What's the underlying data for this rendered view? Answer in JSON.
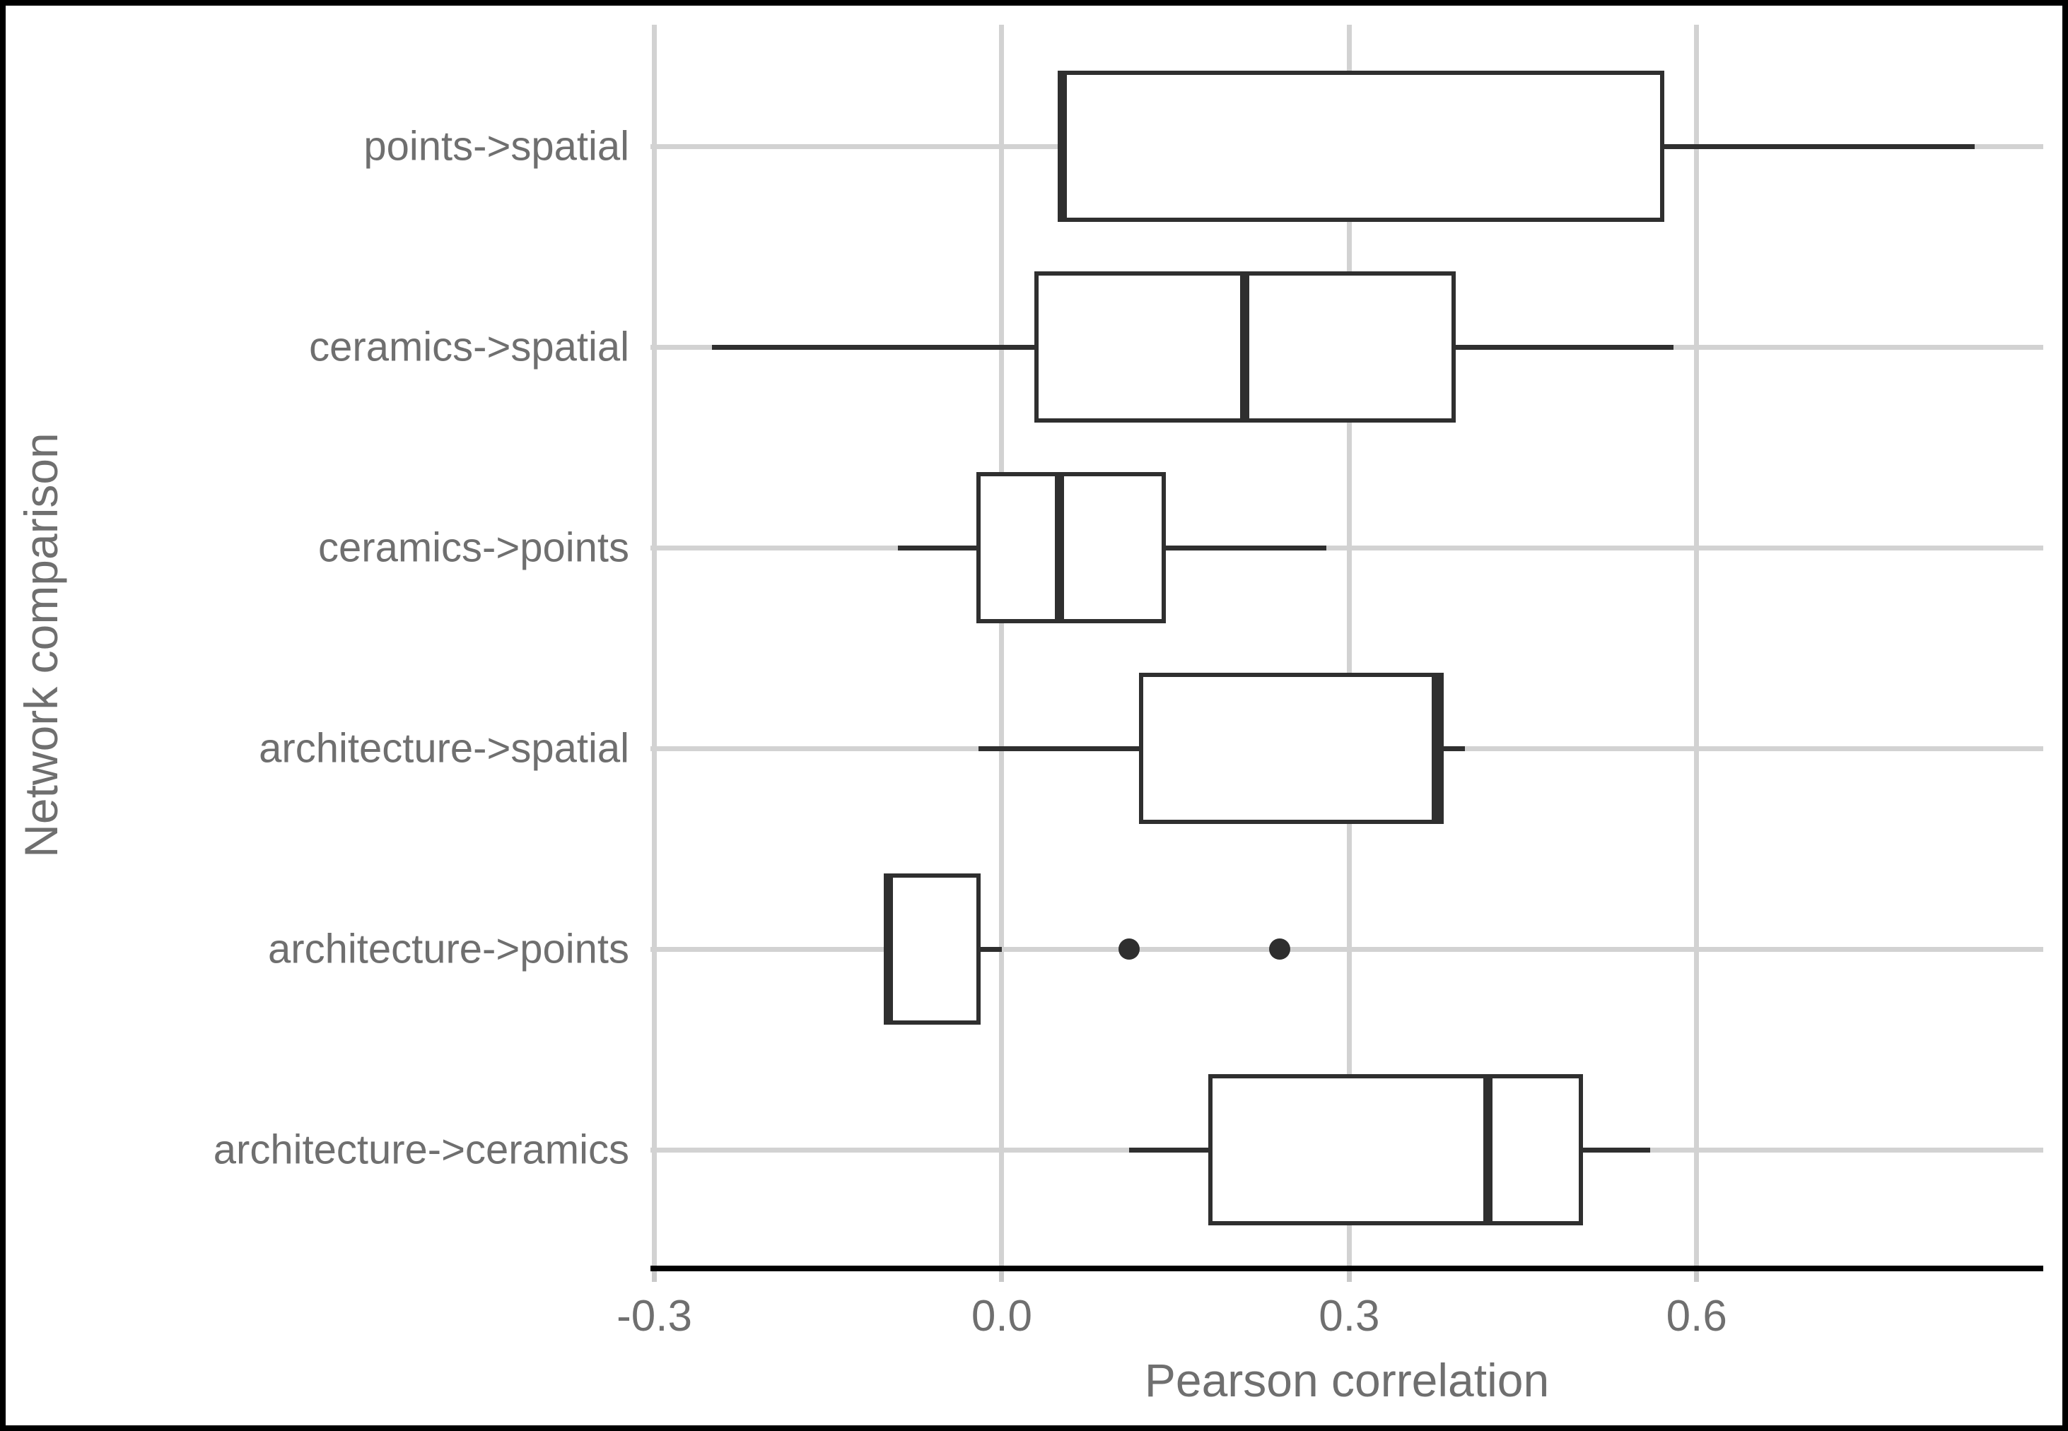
{
  "chart_data": {
    "type": "boxplot",
    "orientation": "horizontal",
    "title": "",
    "xlabel": "Pearson correlation",
    "ylabel": "Network comparison",
    "xlim": [
      -0.3034,
      0.8993
    ],
    "grid": true,
    "legend_position": "none",
    "x_ticks": [
      {
        "value": -0.3,
        "label": "-0.3"
      },
      {
        "value": 0.0,
        "label": "0.0"
      },
      {
        "value": 0.3,
        "label": "0.3"
      },
      {
        "value": 0.6,
        "label": "0.6"
      }
    ],
    "categories": [
      "points->spatial",
      "ceramics->spatial",
      "ceramics->points",
      "architecture->spatial",
      "architecture->points",
      "architecture->ceramics"
    ],
    "boxes": [
      {
        "category": "points->spatial",
        "whisker_low": 0.05,
        "q1": 0.05,
        "median": 0.052,
        "q3": 0.57,
        "whisker_high": 0.84,
        "outliers": []
      },
      {
        "category": "ceramics->spatial",
        "whisker_low": -0.25,
        "q1": 0.03,
        "median": 0.21,
        "q3": 0.39,
        "whisker_high": 0.58,
        "outliers": []
      },
      {
        "category": "ceramics->points",
        "whisker_low": -0.09,
        "q1": -0.02,
        "median": 0.05,
        "q3": 0.14,
        "whisker_high": 0.28,
        "outliers": []
      },
      {
        "category": "architecture->spatial",
        "whisker_low": -0.02,
        "q1": 0.12,
        "median": 0.375,
        "q3": 0.38,
        "whisker_high": 0.4,
        "outliers": []
      },
      {
        "category": "architecture->points",
        "whisker_low": -0.1,
        "q1": -0.1,
        "median": -0.098,
        "q3": -0.02,
        "whisker_high": 0.0,
        "outliers": [
          0.11,
          0.24
        ]
      },
      {
        "category": "architecture->ceramics",
        "whisker_low": 0.11,
        "q1": 0.18,
        "median": 0.42,
        "q3": 0.5,
        "whisker_high": 0.56,
        "outliers": []
      }
    ],
    "colors": {
      "box_stroke": "#2f2f2f",
      "box_fill": "#ffffff",
      "grid": "#d2d2d2",
      "tick": "#c9c9c9",
      "axis_line": "#000000",
      "label_text": "#6f6f6f",
      "background": "#ffffff",
      "figure_border": "#000000"
    }
  }
}
